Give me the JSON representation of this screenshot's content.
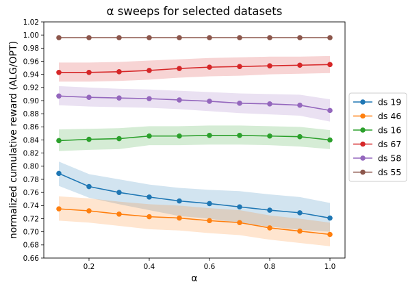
{
  "chart_data": {
    "type": "line",
    "title": "α sweeps for selected datasets",
    "xlabel": "α",
    "ylabel": "normalized cumulative reward (ALG/OPT)",
    "xlim": [
      0.05,
      1.05
    ],
    "ylim": [
      0.66,
      1.02
    ],
    "xticks": [
      0.2,
      0.4,
      0.6,
      0.8,
      1.0
    ],
    "xtick_labels": [
      "0.2",
      "0.4",
      "0.6",
      "0.8",
      "1.0"
    ],
    "yticks": [
      0.66,
      0.68,
      0.7,
      0.72,
      0.74,
      0.76,
      0.78,
      0.8,
      0.82,
      0.84,
      0.86,
      0.88,
      0.9,
      0.92,
      0.94,
      0.96,
      0.98,
      1.0,
      1.02
    ],
    "ytick_labels": [
      "0.66",
      "0.68",
      "0.70",
      "0.72",
      "0.74",
      "0.76",
      "0.78",
      "0.80",
      "0.82",
      "0.84",
      "0.86",
      "0.88",
      "0.90",
      "0.92",
      "0.94",
      "0.96",
      "0.98",
      "1.00",
      "1.02"
    ],
    "grid": false,
    "legend_position": "outside-right",
    "x": [
      0.1,
      0.2,
      0.3,
      0.4,
      0.5,
      0.6,
      0.7,
      0.8,
      0.9,
      1.0
    ],
    "series": [
      {
        "name": "ds 19",
        "color": "#1f77b4",
        "values": [
          0.789,
          0.769,
          0.76,
          0.753,
          0.747,
          0.743,
          0.738,
          0.733,
          0.729,
          0.721
        ],
        "lower": [
          0.77,
          0.752,
          0.742,
          0.733,
          0.724,
          0.72,
          0.713,
          0.708,
          0.703,
          0.7
        ],
        "upper": [
          0.807,
          0.788,
          0.78,
          0.772,
          0.767,
          0.764,
          0.762,
          0.757,
          0.753,
          0.744
        ]
      },
      {
        "name": "ds 46",
        "color": "#ff7f0e",
        "values": [
          0.735,
          0.732,
          0.727,
          0.723,
          0.721,
          0.717,
          0.714,
          0.706,
          0.701,
          0.696
        ],
        "lower": [
          0.717,
          0.714,
          0.709,
          0.704,
          0.702,
          0.698,
          0.695,
          0.688,
          0.683,
          0.678
        ],
        "upper": [
          0.754,
          0.751,
          0.746,
          0.742,
          0.74,
          0.736,
          0.733,
          0.725,
          0.72,
          0.714
        ]
      },
      {
        "name": "ds 16",
        "color": "#2ca02c",
        "values": [
          0.839,
          0.841,
          0.842,
          0.846,
          0.846,
          0.847,
          0.847,
          0.846,
          0.845,
          0.84
        ],
        "lower": [
          0.823,
          0.825,
          0.826,
          0.832,
          0.832,
          0.833,
          0.833,
          0.832,
          0.83,
          0.826
        ],
        "upper": [
          0.856,
          0.857,
          0.858,
          0.861,
          0.861,
          0.862,
          0.862,
          0.861,
          0.86,
          0.855
        ]
      },
      {
        "name": "ds 67",
        "color": "#d62728",
        "values": [
          0.943,
          0.943,
          0.944,
          0.946,
          0.949,
          0.951,
          0.952,
          0.953,
          0.954,
          0.955
        ],
        "lower": [
          0.929,
          0.929,
          0.93,
          0.932,
          0.935,
          0.937,
          0.938,
          0.94,
          0.941,
          0.942
        ],
        "upper": [
          0.958,
          0.958,
          0.959,
          0.961,
          0.963,
          0.965,
          0.966,
          0.967,
          0.967,
          0.968
        ]
      },
      {
        "name": "ds 58",
        "color": "#9467bd",
        "values": [
          0.907,
          0.905,
          0.904,
          0.903,
          0.901,
          0.899,
          0.896,
          0.895,
          0.893,
          0.885
        ],
        "lower": [
          0.893,
          0.891,
          0.89,
          0.889,
          0.887,
          0.884,
          0.881,
          0.879,
          0.877,
          0.868
        ],
        "upper": [
          0.922,
          0.92,
          0.918,
          0.917,
          0.915,
          0.913,
          0.911,
          0.91,
          0.909,
          0.902
        ]
      },
      {
        "name": "ds 55",
        "color": "#8c564b",
        "values": [
          0.996,
          0.996,
          0.996,
          0.996,
          0.996,
          0.996,
          0.996,
          0.996,
          0.996,
          0.996
        ]
      }
    ]
  }
}
